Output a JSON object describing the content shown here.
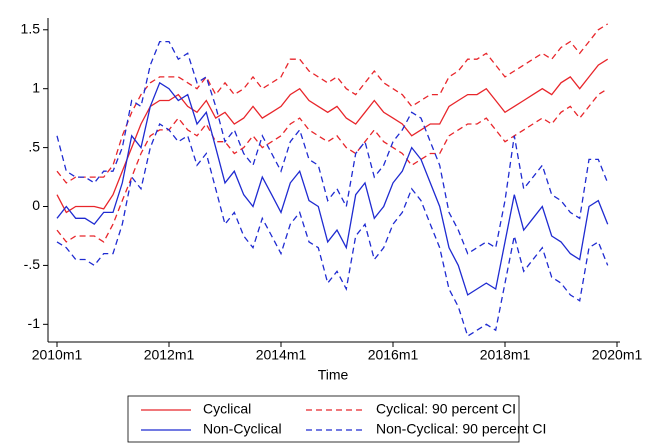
{
  "chart_data": {
    "type": "line",
    "xlabel": "Time",
    "x": [
      "2010m1",
      "2010m3",
      "2010m5",
      "2010m7",
      "2010m9",
      "2010m11",
      "2011m1",
      "2011m3",
      "2011m5",
      "2011m7",
      "2011m9",
      "2011m11",
      "2012m1",
      "2012m3",
      "2012m5",
      "2012m7",
      "2012m9",
      "2012m11",
      "2013m1",
      "2013m3",
      "2013m5",
      "2013m7",
      "2013m9",
      "2013m11",
      "2014m1",
      "2014m3",
      "2014m5",
      "2014m7",
      "2014m9",
      "2014m11",
      "2015m1",
      "2015m3",
      "2015m5",
      "2015m7",
      "2015m9",
      "2015m11",
      "2016m1",
      "2016m3",
      "2016m5",
      "2016m7",
      "2016m9",
      "2016m11",
      "2017m1",
      "2017m3",
      "2017m5",
      "2017m7",
      "2017m9",
      "2017m11",
      "2018m1",
      "2018m3",
      "2018m5",
      "2018m7",
      "2018m9",
      "2018m11",
      "2019m1",
      "2019m3",
      "2019m5",
      "2019m7",
      "2019m9",
      "2019m11",
      "2020m1"
    ],
    "xticks": [
      "2010m1",
      "2012m1",
      "2014m1",
      "2016m1",
      "2018m1",
      "2020m1"
    ],
    "ylim": [
      -1.15,
      1.6
    ],
    "yticks": [
      {
        "value": -1,
        "label": "-1"
      },
      {
        "value": -0.5,
        "label": "-.5"
      },
      0,
      {
        "value": 0.5,
        "label": ".5"
      },
      1,
      1.5
    ],
    "grid": false,
    "series": [
      {
        "name": "Cyclical",
        "color": "#e8262b",
        "ci_name": "Cyclical: 90 percent CI",
        "values": [
          0.1,
          -0.05,
          0,
          0,
          0,
          -0.02,
          0.1,
          0.3,
          0.5,
          0.7,
          0.85,
          0.9,
          0.9,
          0.95,
          0.85,
          0.8,
          0.9,
          0.75,
          0.8,
          0.7,
          0.75,
          0.85,
          0.75,
          0.8,
          0.85,
          0.95,
          1.0,
          0.9,
          0.85,
          0.8,
          0.85,
          0.75,
          0.7,
          0.8,
          0.9,
          0.8,
          0.75,
          0.7,
          0.6,
          0.65,
          0.7,
          0.7,
          0.85,
          0.9,
          0.95,
          0.95,
          1.0,
          0.9,
          0.8,
          0.85,
          0.9,
          0.95,
          1.0,
          0.95,
          1.05,
          1.1,
          1.0,
          1.1,
          1.2,
          1.25,
          null
        ],
        "ci_upper": [
          0.3,
          0.2,
          0.25,
          0.25,
          0.25,
          0.25,
          0.35,
          0.6,
          0.8,
          0.95,
          1.05,
          1.1,
          1.1,
          1.1,
          1.05,
          1.0,
          1.1,
          0.95,
          1.05,
          0.95,
          1.0,
          1.1,
          1.0,
          1.05,
          1.1,
          1.25,
          1.25,
          1.15,
          1.1,
          1.05,
          1.1,
          1.0,
          0.95,
          1.05,
          1.15,
          1.05,
          1.0,
          0.95,
          0.85,
          0.9,
          0.95,
          0.95,
          1.1,
          1.15,
          1.25,
          1.25,
          1.3,
          1.2,
          1.1,
          1.15,
          1.2,
          1.25,
          1.3,
          1.25,
          1.35,
          1.4,
          1.3,
          1.4,
          1.5,
          1.55,
          null
        ],
        "ci_lower": [
          -0.2,
          -0.3,
          -0.25,
          -0.25,
          -0.25,
          -0.3,
          -0.15,
          0.05,
          0.25,
          0.45,
          0.6,
          0.65,
          0.65,
          0.75,
          0.65,
          0.6,
          0.7,
          0.55,
          0.55,
          0.45,
          0.5,
          0.6,
          0.5,
          0.55,
          0.6,
          0.7,
          0.75,
          0.65,
          0.6,
          0.55,
          0.6,
          0.5,
          0.45,
          0.55,
          0.65,
          0.55,
          0.5,
          0.45,
          0.35,
          0.4,
          0.45,
          0.45,
          0.6,
          0.65,
          0.7,
          0.7,
          0.75,
          0.65,
          0.55,
          0.6,
          0.65,
          0.7,
          0.75,
          0.7,
          0.8,
          0.85,
          0.75,
          0.85,
          0.95,
          1.0,
          null
        ]
      },
      {
        "name": "Non-Cyclical",
        "color": "#1f2bd1",
        "ci_name": "Non-Cyclical: 90 percent CI",
        "values": [
          -0.1,
          0,
          -0.1,
          -0.1,
          -0.15,
          -0.05,
          -0.05,
          0.2,
          0.6,
          0.5,
          0.85,
          1.05,
          1.0,
          0.9,
          0.95,
          0.7,
          0.8,
          0.5,
          0.2,
          0.3,
          0.1,
          0,
          0.25,
          0.1,
          -0.05,
          0.2,
          0.3,
          0.05,
          0,
          -0.3,
          -0.2,
          -0.35,
          0.1,
          0.2,
          -0.1,
          0,
          0.2,
          0.3,
          0.5,
          0.4,
          0.2,
          0,
          -0.35,
          -0.5,
          -0.75,
          -0.7,
          -0.65,
          -0.7,
          -0.3,
          0.1,
          -0.2,
          -0.1,
          0,
          -0.25,
          -0.3,
          -0.4,
          -0.45,
          0,
          0.05,
          -0.15,
          null
        ],
        "ci_upper": [
          0.6,
          0.3,
          0.25,
          0.25,
          0.2,
          0.3,
          0.3,
          0.5,
          0.9,
          0.85,
          1.2,
          1.4,
          1.4,
          1.25,
          1.3,
          1.05,
          1.1,
          0.85,
          0.55,
          0.65,
          0.45,
          0.35,
          0.6,
          0.45,
          0.3,
          0.55,
          0.65,
          0.4,
          0.35,
          0.05,
          0.15,
          0.0,
          0.45,
          0.55,
          0.25,
          0.35,
          0.55,
          0.65,
          0.8,
          0.75,
          0.55,
          0.35,
          -0.05,
          -0.2,
          -0.4,
          -0.35,
          -0.3,
          -0.35,
          0.05,
          0.6,
          0.15,
          0.25,
          0.35,
          0.1,
          0.05,
          -0.05,
          -0.1,
          0.4,
          0.4,
          0.2,
          null
        ],
        "ci_lower": [
          -0.3,
          -0.35,
          -0.45,
          -0.45,
          -0.5,
          -0.4,
          -0.4,
          -0.15,
          0.25,
          0.15,
          0.5,
          0.7,
          0.65,
          0.55,
          0.6,
          0.35,
          0.45,
          0.15,
          -0.15,
          -0.05,
          -0.25,
          -0.35,
          -0.1,
          -0.25,
          -0.4,
          -0.15,
          -0.05,
          -0.3,
          -0.35,
          -0.65,
          -0.55,
          -0.7,
          -0.25,
          -0.15,
          -0.45,
          -0.35,
          -0.15,
          -0.05,
          0.15,
          0.05,
          -0.15,
          -0.35,
          -0.7,
          -0.85,
          -1.1,
          -1.05,
          -1.0,
          -1.05,
          -0.65,
          -0.25,
          -0.55,
          -0.45,
          -0.35,
          -0.6,
          -0.65,
          -0.75,
          -0.8,
          -0.35,
          -0.3,
          -0.5,
          null
        ]
      }
    ]
  }
}
